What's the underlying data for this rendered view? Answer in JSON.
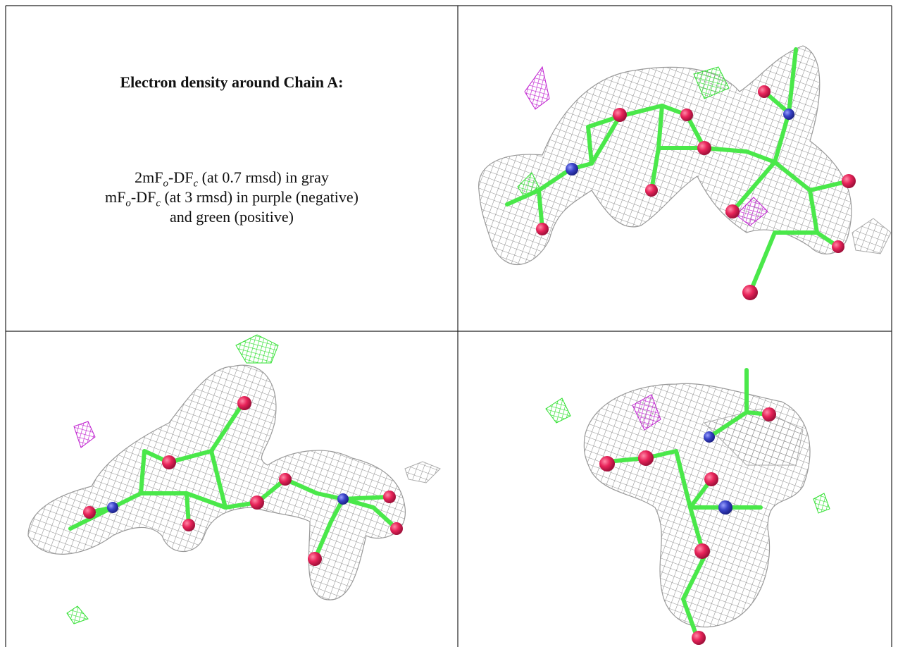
{
  "document": {
    "title": "Electron density around Chain A:",
    "legend": [
      [
        "2mF",
        "o",
        "-DF",
        "c",
        " (at 0.7 rmsd) in gray"
      ],
      [
        "mF",
        "o",
        "-DF",
        "c",
        " (at 3 rmsd) in purple (negative)"
      ],
      [
        "and green (positive)"
      ]
    ]
  }
}
